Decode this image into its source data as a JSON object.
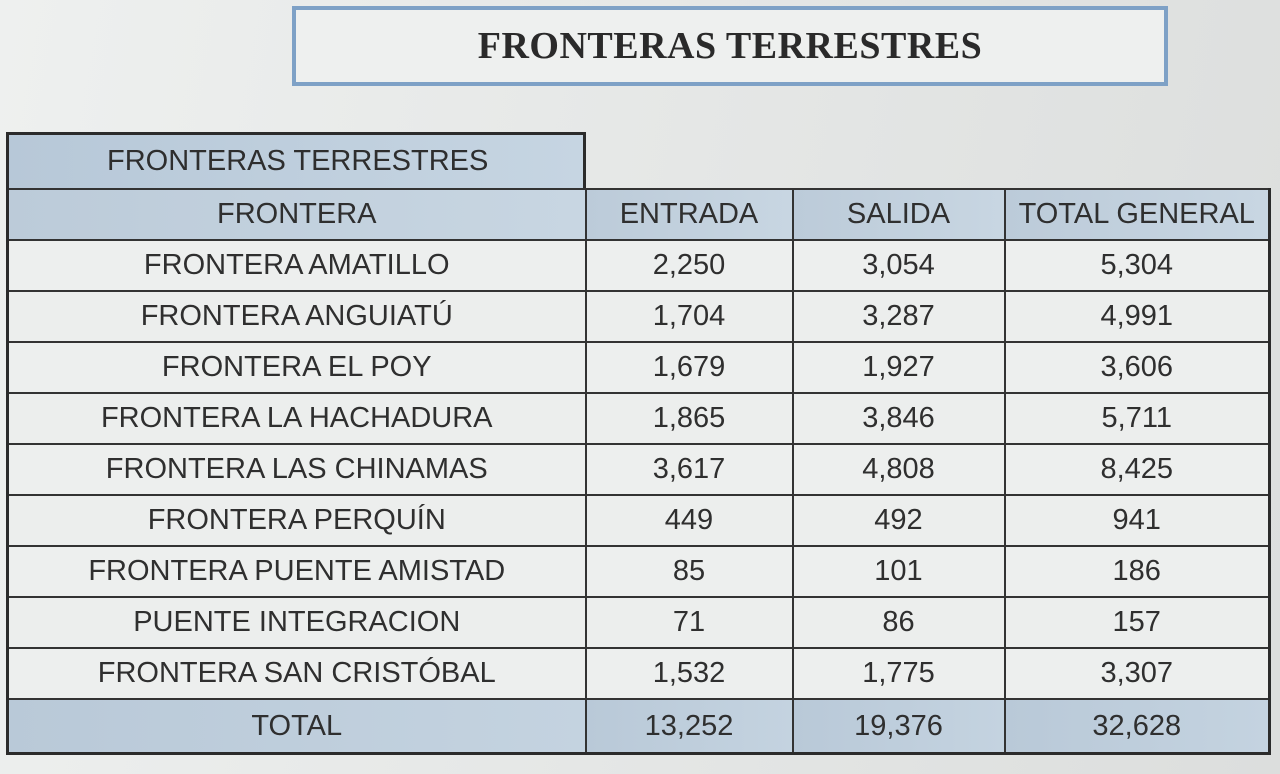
{
  "banner": {
    "title": "FRONTERAS TERRESTRES"
  },
  "table": {
    "section_label": "FRONTERAS TERRESTRES",
    "columns": [
      "FRONTERA",
      "ENTRADA",
      "SALIDA",
      "TOTAL GENERAL"
    ],
    "rows": [
      [
        "FRONTERA AMATILLO",
        "2,250",
        "3,054",
        "5,304"
      ],
      [
        "FRONTERA ANGUIATÚ",
        "1,704",
        "3,287",
        "4,991"
      ],
      [
        "FRONTERA EL POY",
        "1,679",
        "1,927",
        "3,606"
      ],
      [
        "FRONTERA LA HACHADURA",
        "1,865",
        "3,846",
        "5,711"
      ],
      [
        "FRONTERA LAS CHINAMAS",
        "3,617",
        "4,808",
        "8,425"
      ],
      [
        "FRONTERA PERQUÍN",
        "449",
        "492",
        "941"
      ],
      [
        "FRONTERA PUENTE AMISTAD",
        "85",
        "101",
        "186"
      ],
      [
        "PUENTE INTEGRACION",
        "71",
        "86",
        "157"
      ],
      [
        "FRONTERA SAN CRISTÓBAL",
        "1,532",
        "1,775",
        "3,307"
      ]
    ],
    "total": [
      "TOTAL",
      "13,252",
      "19,376",
      "32,628"
    ]
  }
}
